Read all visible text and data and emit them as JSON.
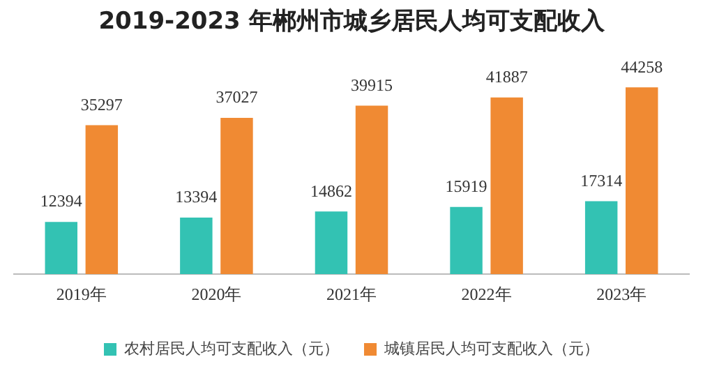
{
  "chart_data": {
    "type": "bar",
    "title": "2019-2023 年郴州市城乡居民人均可支配收入",
    "categories": [
      "2019年",
      "2020年",
      "2021年",
      "2022年",
      "2023年"
    ],
    "series": [
      {
        "name": "农村居民人均可支配收入（元）",
        "color": "#33c2b3",
        "values": [
          12394,
          13394,
          14862,
          15919,
          17314
        ]
      },
      {
        "name": "城镇居民人均可支配收入（元）",
        "color": "#f08a33",
        "values": [
          35297,
          37027,
          39915,
          41887,
          44258
        ]
      }
    ],
    "data_labels": true,
    "grid": false,
    "legend": "bottom",
    "tick_labels": "x"
  }
}
